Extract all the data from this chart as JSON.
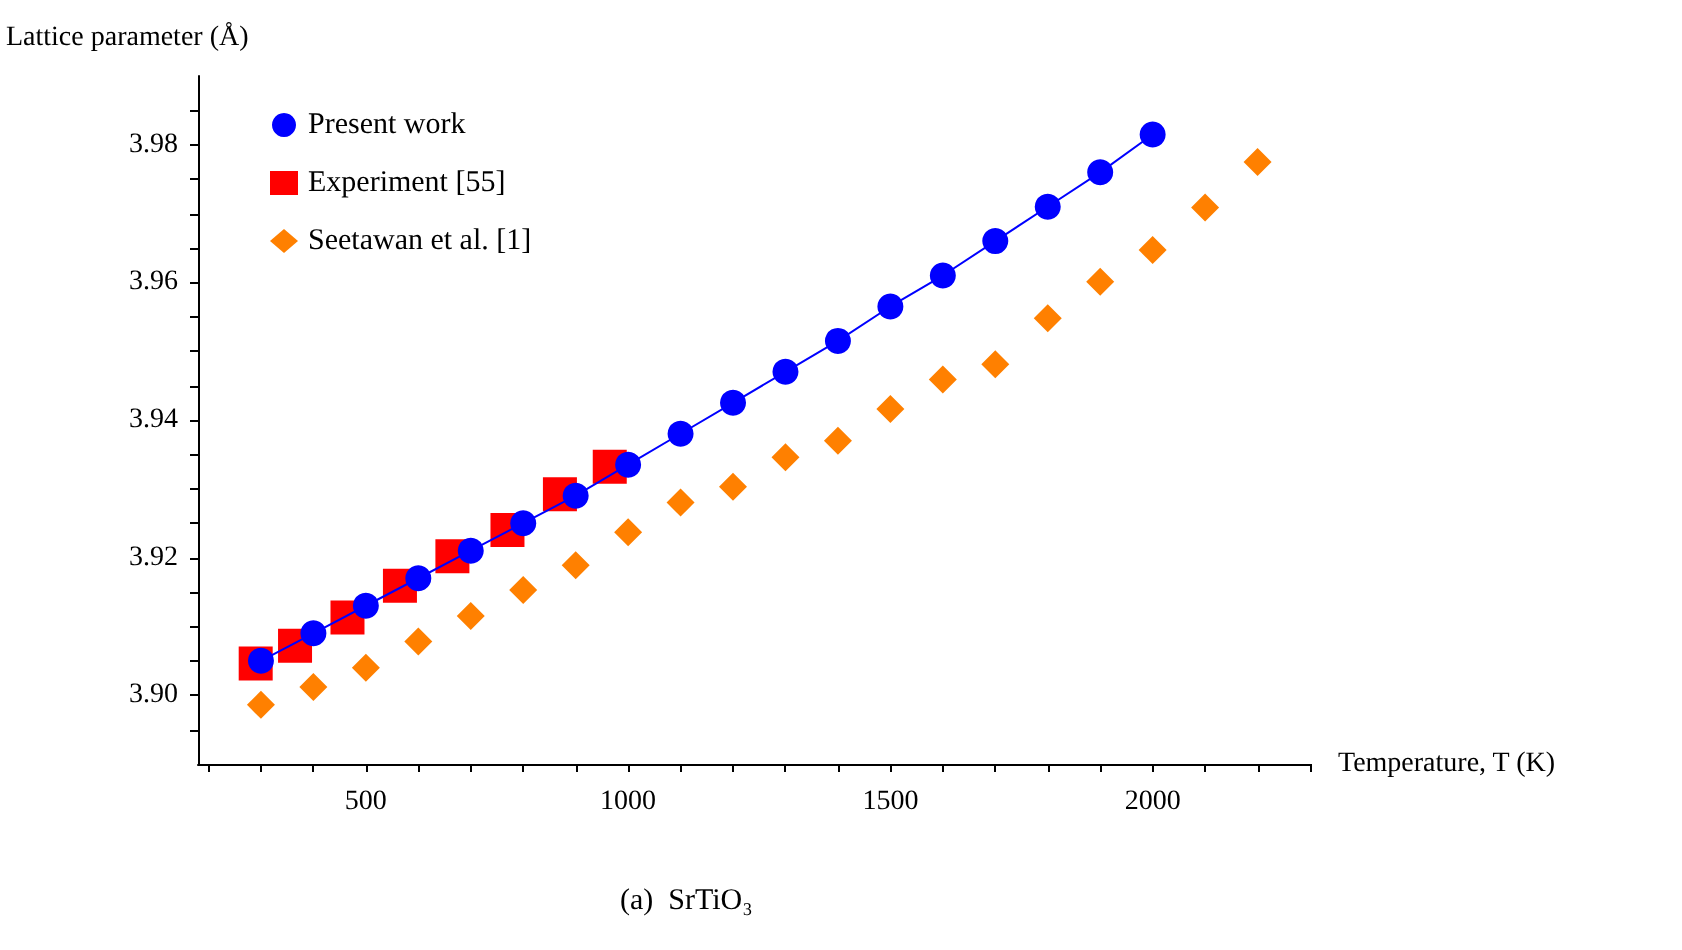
{
  "chart_data": {
    "type": "scatter",
    "title": "(a)  SrTiO₃",
    "xlabel": "Temperature, T (K)",
    "ylabel": "Lattice parameter (Å)",
    "xlim": [
      180,
      2300
    ],
    "xticks": [
      {
        "value": 200,
        "label": null
      },
      {
        "value": 300,
        "label": null
      },
      {
        "value": 400,
        "label": null
      },
      500,
      {
        "value": 600,
        "label": null
      },
      {
        "value": 700,
        "label": null
      },
      {
        "value": 800,
        "label": null
      },
      {
        "value": 900,
        "label": null
      },
      1000,
      {
        "value": 1100,
        "label": null
      },
      {
        "value": 1200,
        "label": null
      },
      {
        "value": 1300,
        "label": null
      },
      {
        "value": 1400,
        "label": null
      },
      1500,
      {
        "value": 1600,
        "label": null
      },
      {
        "value": 1700,
        "label": null
      },
      {
        "value": 1800,
        "label": null
      },
      {
        "value": 1900,
        "label": null
      },
      2000,
      {
        "value": 2100,
        "label": null
      },
      {
        "value": 2200,
        "label": null
      },
      {
        "value": 2300,
        "label": null
      }
    ],
    "ylim": [
      3.89,
      3.99
    ],
    "yticks": [
      {
        "value": 3.895,
        "label": null
      },
      {
        "value": 3.9,
        "label": "3.90"
      },
      {
        "value": 3.905,
        "label": null
      },
      {
        "value": 3.91,
        "label": null
      },
      {
        "value": 3.915,
        "label": null
      },
      3.92,
      {
        "value": 3.925,
        "label": null
      },
      {
        "value": 3.93,
        "label": null
      },
      {
        "value": 3.935,
        "label": null
      },
      3.94,
      {
        "value": 3.945,
        "label": null
      },
      {
        "value": 3.95,
        "label": null
      },
      {
        "value": 3.955,
        "label": null
      },
      3.96,
      {
        "value": 3.965,
        "label": null
      },
      {
        "value": 3.97,
        "label": null
      },
      {
        "value": 3.975,
        "label": null
      },
      3.98,
      {
        "value": 3.985,
        "label": null
      }
    ],
    "grid": false,
    "legend": "top left",
    "series": [
      {
        "name": "Present work",
        "type": "line",
        "marker": "circle",
        "color": "#0000ff",
        "x": [
          300,
          400,
          500,
          600,
          700,
          800,
          900,
          1000,
          1100,
          1200,
          1300,
          1400,
          1500,
          1600,
          1700,
          1800,
          1900,
          2000
        ],
        "values": [
          3.905,
          3.909,
          3.913,
          3.917,
          3.921,
          3.925,
          3.929,
          3.9335,
          3.938,
          3.9425,
          3.947,
          3.9515,
          3.9565,
          3.961,
          3.966,
          3.971,
          3.976,
          3.9815
        ]
      },
      {
        "name": "Experiment [55]",
        "marker": "square",
        "color": "#ff0000",
        "x": [
          290,
          365,
          465,
          565,
          665,
          770,
          870,
          965
        ],
        "values": [
          3.9046,
          3.9072,
          3.9113,
          3.9159,
          3.9202,
          3.924,
          3.9292,
          3.9332
        ]
      },
      {
        "name": "Seetawan et al. [1]",
        "marker": "diamond",
        "color": "#ff8000",
        "x": [
          300,
          400,
          500,
          600,
          700,
          800,
          900,
          1000,
          1100,
          1200,
          1300,
          1400,
          1500,
          1600,
          1700,
          1800,
          1900,
          2000,
          2100,
          2200
        ],
        "values": [
          3.8986,
          3.9012,
          3.904,
          3.9078,
          3.9115,
          3.9153,
          3.9189,
          3.9237,
          3.928,
          3.9303,
          3.9346,
          3.937,
          3.9416,
          3.9459,
          3.9481,
          3.9548,
          3.9601,
          3.9647,
          3.9709,
          3.9775
        ]
      }
    ]
  }
}
